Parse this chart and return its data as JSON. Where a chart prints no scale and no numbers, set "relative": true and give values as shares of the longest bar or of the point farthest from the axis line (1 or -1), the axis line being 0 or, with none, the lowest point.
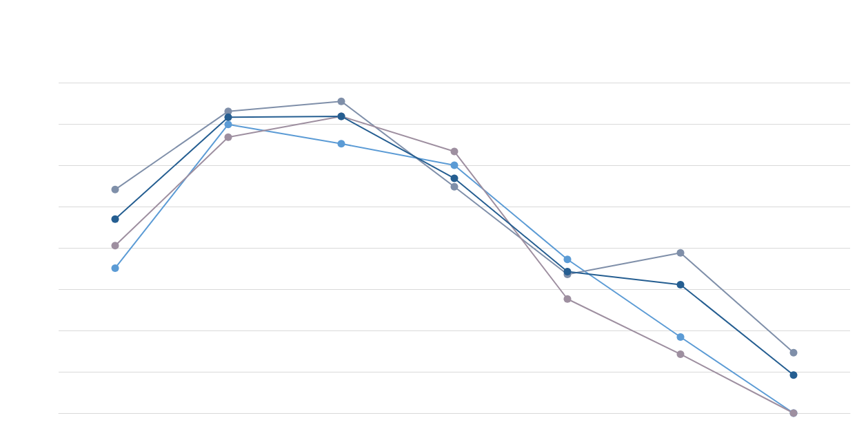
{
  "chart_data": {
    "type": "line",
    "relative": true,
    "categories": [
      null,
      null,
      null,
      null,
      null,
      null,
      null
    ],
    "grid": "y",
    "marker": "circle",
    "line_style": "solid",
    "series": [
      {
        "color": "#5b9bd5",
        "values": [
          0.465,
          0.926,
          0.864,
          0.795,
          0.493,
          0.244,
          0
        ]
      },
      {
        "color": "#7f8fa9",
        "values": [
          0.717,
          0.968,
          1,
          0.726,
          0.445,
          0.514,
          0.194
        ]
      },
      {
        "color": "#9e8fa0",
        "values": [
          0.537,
          0.885,
          0.952,
          0.839,
          0.366,
          0.189,
          0
        ]
      },
      {
        "color": "#255e91",
        "values": [
          0.622,
          0.949,
          0.952,
          0.753,
          0.454,
          0.412,
          0.122
        ]
      }
    ]
  }
}
